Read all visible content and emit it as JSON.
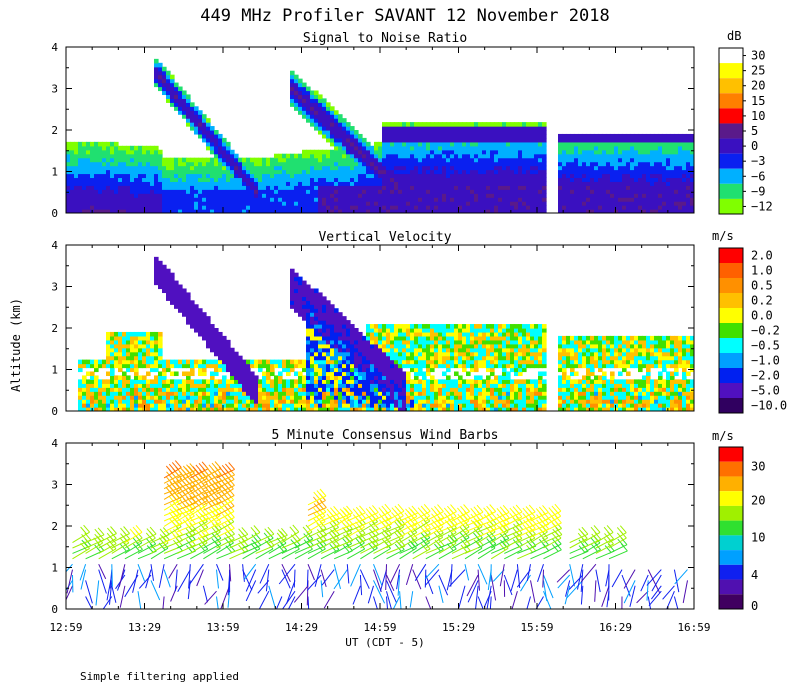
{
  "page_title": "449 MHz Profiler SAVANT 12 November 2018",
  "y_axis_label": "Altitude (km)",
  "x_axis_label": "UT  (CDT - 5)",
  "footnote": "Simple filtering applied",
  "chart_data": [
    {
      "type": "heatmap",
      "title": "Signal to Noise Ratio",
      "x_ticks": [
        "12:59",
        "13:29",
        "13:59",
        "14:29",
        "14:59",
        "15:29",
        "15:59",
        "16:29",
        "16:59"
      ],
      "y_ticks": [
        "0",
        "1",
        "2",
        "3",
        "4"
      ],
      "ylim": [
        0,
        4
      ],
      "colorbar": {
        "unit": "dB",
        "labels": [
          "30",
          "25",
          "20",
          "15",
          "10",
          "5",
          "0",
          "−3",
          "−6",
          "−9",
          "−12"
        ],
        "colors": [
          "#ffffff",
          "#ffff00",
          "#ffc000",
          "#ff7f00",
          "#ff0000",
          "#5a1a8a",
          "#3a10c0",
          "#0a20f0",
          "#00b0ff",
          "#20e070",
          "#80ff00"
        ]
      },
      "values": [
        [
          -12,
          -9,
          -6,
          -3,
          0,
          5
        ],
        [
          -12,
          -9,
          -3,
          0,
          5,
          5
        ],
        [
          -12,
          -9,
          -6,
          -3,
          -6,
          -12
        ]
      ]
    },
    {
      "type": "heatmap",
      "title": "Vertical Velocity",
      "x_ticks": [
        "12:59",
        "13:29",
        "13:59",
        "14:29",
        "14:59",
        "15:29",
        "15:59",
        "16:29",
        "16:59"
      ],
      "y_ticks": [
        "0",
        "1",
        "2",
        "3",
        "4"
      ],
      "ylim": [
        0,
        4
      ],
      "colorbar": {
        "unit": "m/s",
        "labels": [
          "2.0",
          "1.0",
          "0.5",
          "0.2",
          "0.0",
          "−0.2",
          "−0.5",
          "−1.0",
          "−2.0",
          "−5.0",
          "−10.0"
        ],
        "colors": [
          "#ff0000",
          "#ff6000",
          "#ff9000",
          "#ffc000",
          "#ffff00",
          "#40e000",
          "#00ffff",
          "#00a0ff",
          "#0020f0",
          "#5010c0",
          "#300060"
        ]
      },
      "values": [
        [
          -0.2,
          0.2,
          -0.5,
          -0.2,
          0.0,
          -0.2
        ],
        [
          -2.0,
          -1.0,
          -0.5,
          -0.2,
          0.2,
          -0.2
        ],
        [
          -5.0,
          -2.0,
          -1.0,
          -0.5,
          -0.2,
          0.0
        ]
      ]
    },
    {
      "type": "scatter",
      "title": "5 Minute Consensus Wind Barbs",
      "x_ticks": [
        "12:59",
        "13:29",
        "13:59",
        "14:29",
        "14:59",
        "15:29",
        "15:59",
        "16:29",
        "16:59"
      ],
      "y_ticks": [
        "0",
        "1",
        "2",
        "3",
        "4"
      ],
      "ylim": [
        0,
        4
      ],
      "colorbar": {
        "unit": "m/s",
        "labels": [
          "30",
          "20",
          "10",
          "4",
          "0"
        ],
        "colors": [
          "#ff0000",
          "#ff7000",
          "#ffb000",
          "#ffff00",
          "#a0f000",
          "#30e030",
          "#00d0d0",
          "#00a0ff",
          "#1020f0",
          "#5010b0",
          "#400060"
        ]
      },
      "values": [
        [
          1.0,
          1.5,
          2.2,
          3.0
        ],
        [
          1.0,
          1.4,
          2.0,
          2.4
        ],
        [
          0.8,
          1.2,
          1.6,
          2.0
        ]
      ]
    }
  ]
}
